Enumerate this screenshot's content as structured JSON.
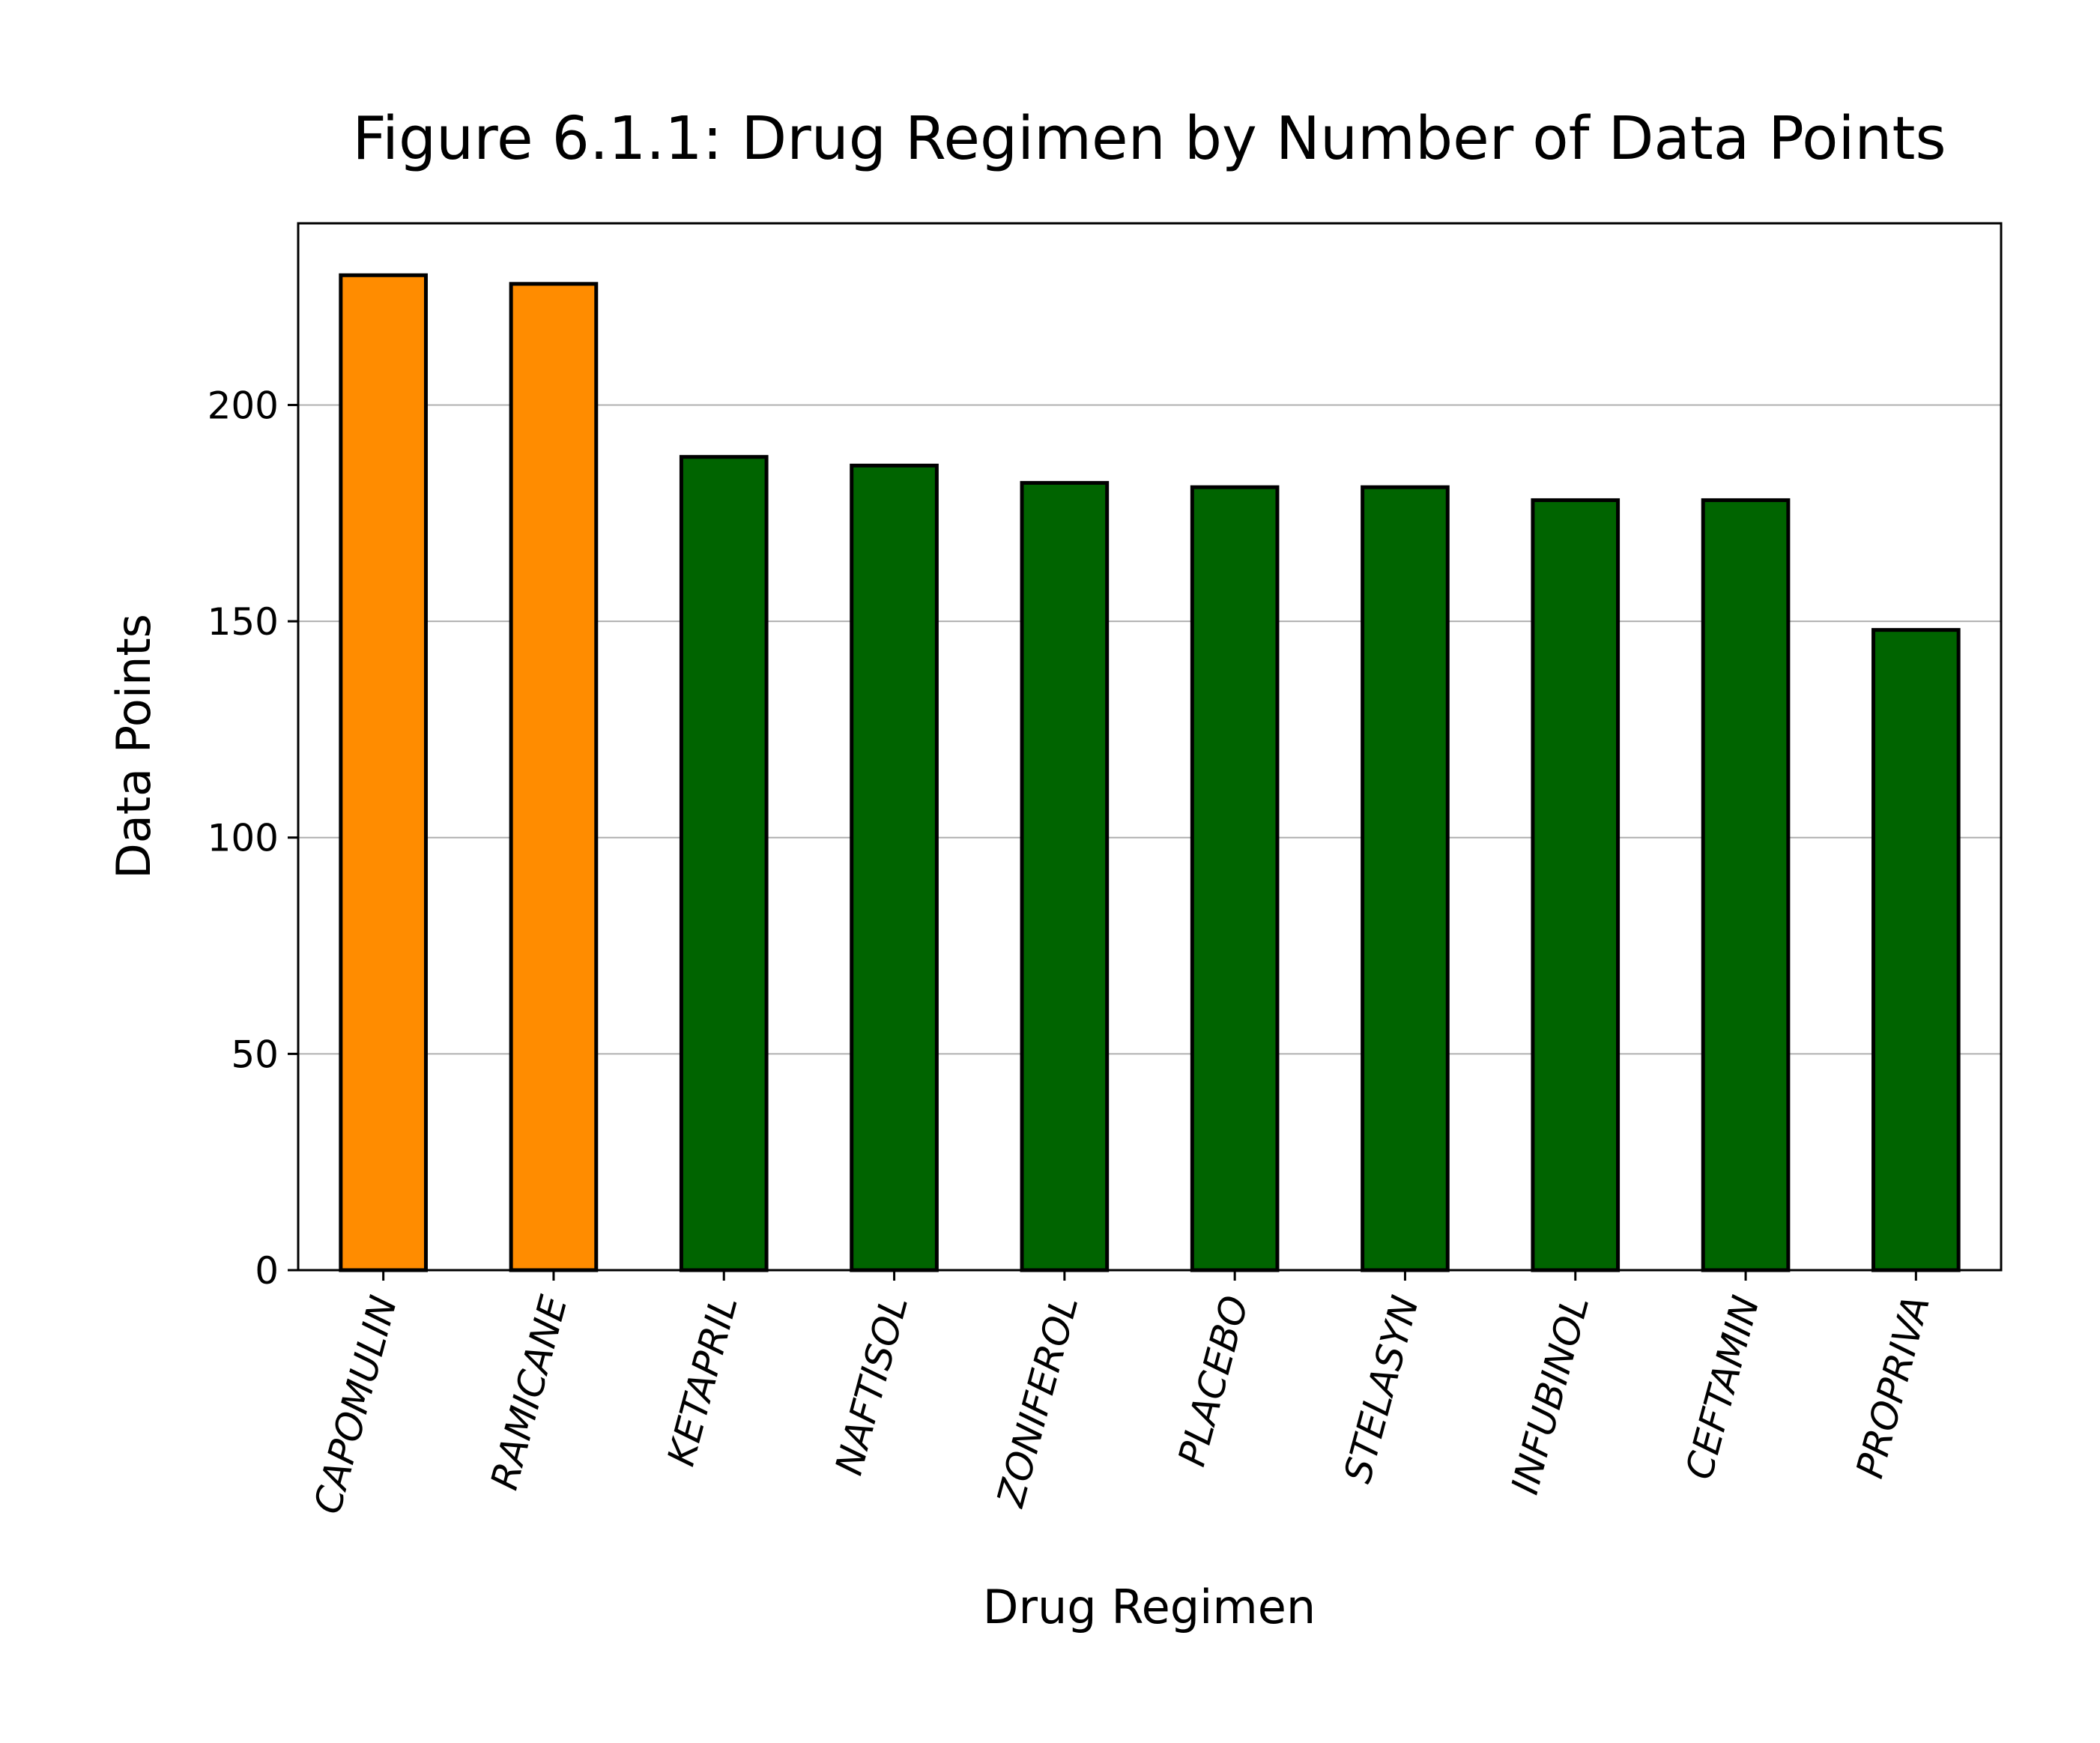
{
  "chart_data": {
    "type": "bar",
    "title": "Figure 6.1.1: Drug Regimen by Number of Data Points",
    "xlabel": "Drug Regimen",
    "ylabel": "Data Points",
    "categories": [
      "CAPOMULIN",
      "RAMICANE",
      "KETAPRIL",
      "NAFTISOL",
      "ZONIFEROL",
      "PLACEBO",
      "STELASYN",
      "INFUBINOL",
      "CEFTAMIN",
      "PROPRIVA"
    ],
    "values": [
      230,
      228,
      188,
      186,
      182,
      181,
      181,
      178,
      178,
      148
    ],
    "bar_colors": [
      "#ff8c00",
      "#ff8c00",
      "#006400",
      "#006400",
      "#006400",
      "#006400",
      "#006400",
      "#006400",
      "#006400",
      "#006400"
    ],
    "edge_color": "#000000",
    "ylim": [
      0,
      242
    ],
    "yticks": [
      0,
      50,
      100,
      150,
      200
    ],
    "grid": "y",
    "grid_color": "#b0b0b0",
    "x_tick_label_style": "italic, rotated"
  }
}
